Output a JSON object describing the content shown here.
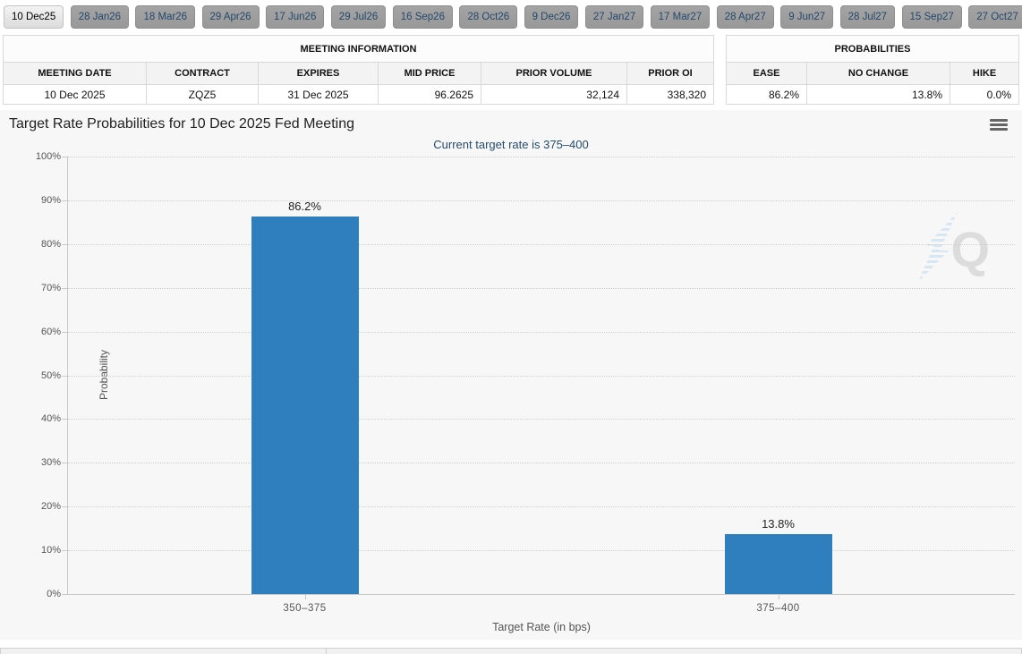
{
  "tabs": [
    {
      "label": "10 Dec25",
      "selected": true
    },
    {
      "label": "28 Jan26",
      "selected": false
    },
    {
      "label": "18 Mar26",
      "selected": false
    },
    {
      "label": "29 Apr26",
      "selected": false
    },
    {
      "label": "17 Jun26",
      "selected": false
    },
    {
      "label": "29 Jul26",
      "selected": false
    },
    {
      "label": "16 Sep26",
      "selected": false
    },
    {
      "label": "28 Oct26",
      "selected": false
    },
    {
      "label": "9 Dec26",
      "selected": false
    },
    {
      "label": "27 Jan27",
      "selected": false
    },
    {
      "label": "17 Mar27",
      "selected": false
    },
    {
      "label": "28 Apr27",
      "selected": false
    },
    {
      "label": "9 Jun27",
      "selected": false
    },
    {
      "label": "28 Jul27",
      "selected": false
    },
    {
      "label": "15 Sep27",
      "selected": false
    },
    {
      "label": "27 Oct27",
      "selected": false
    }
  ],
  "meeting_info": {
    "title": "MEETING INFORMATION",
    "columns": [
      "MEETING DATE",
      "CONTRACT",
      "EXPIRES",
      "MID PRICE",
      "PRIOR VOLUME",
      "PRIOR OI"
    ],
    "values": [
      "10 Dec 2025",
      "ZQZ5",
      "31 Dec 2025",
      "96.2625",
      "32,124",
      "338,320"
    ]
  },
  "probabilities": {
    "title": "PROBABILITIES",
    "columns": [
      "EASE",
      "NO CHANGE",
      "HIKE"
    ],
    "values": [
      "86.2%",
      "13.8%",
      "0.0%"
    ]
  },
  "icons": {
    "menu": "hamburger-menu-icon",
    "watermark": "quikstrike-q-watermark"
  },
  "chart_data": {
    "type": "bar",
    "title": "Target Rate Probabilities for 10 Dec 2025 Fed Meeting",
    "subtitle": "Current target rate is 375–400",
    "categories": [
      "350–375",
      "375–400"
    ],
    "values": [
      86.2,
      13.8
    ],
    "data_labels": [
      "86.2%",
      "13.8%"
    ],
    "xlabel": "Target Rate (in bps)",
    "ylabel": "Probability",
    "ylim": [
      0,
      100
    ],
    "ytick_labels": [
      "0%",
      "10%",
      "20%",
      "30%",
      "40%",
      "50%",
      "60%",
      "70%",
      "80%",
      "90%",
      "100%"
    ],
    "grid": "horizontal-dotted",
    "legend": "none",
    "bar_color": "#2f7ebd",
    "watermark_letter": "Q"
  }
}
